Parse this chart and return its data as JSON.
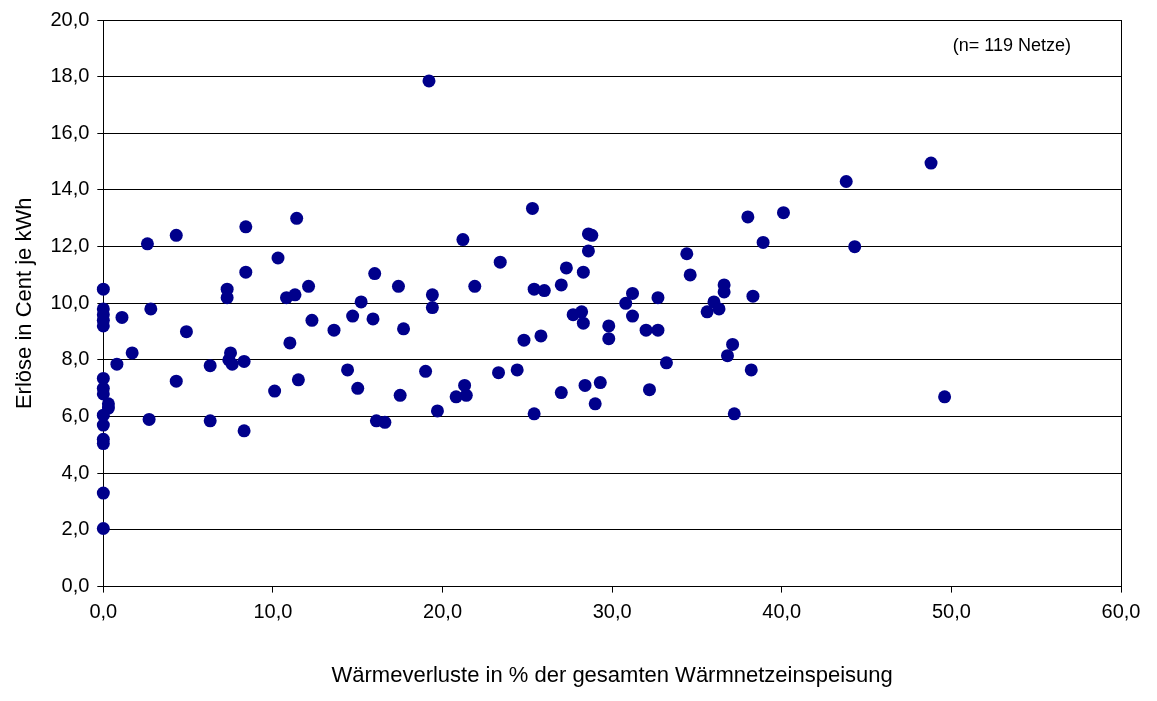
{
  "chart_data": {
    "type": "scatter",
    "xlabel": "Wärmeverluste in % der gesamten Wärmnetzeinspeisung",
    "ylabel": "Erlöse in Cent je kWh",
    "annotations": [
      "(n= 119 Netze)"
    ],
    "xlim": [
      0,
      60
    ],
    "ylim": [
      0,
      20
    ],
    "xticks": [
      {
        "value": 0,
        "label": "0,0"
      },
      {
        "value": 10,
        "label": "10,0"
      },
      {
        "value": 20,
        "label": "20,0"
      },
      {
        "value": 30,
        "label": "30,0"
      },
      {
        "value": 40,
        "label": "40,0"
      },
      {
        "value": 50,
        "label": "50,0"
      },
      {
        "value": 60,
        "label": "60,0"
      }
    ],
    "yticks": [
      {
        "value": 0,
        "label": "0,0"
      },
      {
        "value": 2,
        "label": "2,0"
      },
      {
        "value": 4,
        "label": "4,0"
      },
      {
        "value": 6,
        "label": "6,0"
      },
      {
        "value": 8,
        "label": "8,0"
      },
      {
        "value": 10,
        "label": "10,0"
      },
      {
        "value": 12,
        "label": "12,0"
      },
      {
        "value": 14,
        "label": "14,0"
      },
      {
        "value": 16,
        "label": "16,0"
      },
      {
        "value": 18,
        "label": "18,0"
      },
      {
        "value": 20,
        "label": "20,0"
      }
    ],
    "grid": "y",
    "legend": false,
    "marker": "circle",
    "series": [
      {
        "color": "#00008b",
        "x": [
          0,
          0,
          0,
          0,
          0,
          0,
          0,
          0,
          0,
          0,
          0,
          0,
          0,
          0,
          0.3,
          0.3,
          0.8,
          1.1,
          1.7,
          2.6,
          2.7,
          2.8,
          4.3,
          4.3,
          4.9,
          6.3,
          6.3,
          7.3,
          7.3,
          7.4,
          7.5,
          7.6,
          8.3,
          8.4,
          8.4,
          8.3,
          10.1,
          10.3,
          10.8,
          11.0,
          11.3,
          11.4,
          11.5,
          12.1,
          12.3,
          13.6,
          14.4,
          14.7,
          15.0,
          15.2,
          15.9,
          16.0,
          16.1,
          16.6,
          17.4,
          17.5,
          17.7,
          19.0,
          19.2,
          19.4,
          19.4,
          19.7,
          20.8,
          21.2,
          21.3,
          21.4,
          21.9,
          23.3,
          23.4,
          24.4,
          24.8,
          25.3,
          25.4,
          25.4,
          25.8,
          26.0,
          27.0,
          27.0,
          27.3,
          27.7,
          28.2,
          28.3,
          28.3,
          28.4,
          28.6,
          28.6,
          28.8,
          29.0,
          29.3,
          29.8,
          29.8,
          30.8,
          31.2,
          31.2,
          32.0,
          32.2,
          32.7,
          32.7,
          33.2,
          34.4,
          34.6,
          35.6,
          36.0,
          36.3,
          36.6,
          36.6,
          36.8,
          37.1,
          37.2,
          38.0,
          38.3,
          38.2,
          38.9,
          40.1,
          43.8,
          44.3,
          48.8,
          49.6
        ],
        "values": [
          10.5,
          9.8,
          9.6,
          9.4,
          9.2,
          7.35,
          7.0,
          6.8,
          6.05,
          5.7,
          5.2,
          5.05,
          3.3,
          2.05,
          6.3,
          6.45,
          7.85,
          9.5,
          8.25,
          12.1,
          5.9,
          9.8,
          12.4,
          7.25,
          9.0,
          7.8,
          5.85,
          10.5,
          10.2,
          8.0,
          8.25,
          7.85,
          7.95,
          12.7,
          11.1,
          5.5,
          6.9,
          11.6,
          10.2,
          8.6,
          10.3,
          13.0,
          7.3,
          10.6,
          9.4,
          9.05,
          7.65,
          9.55,
          7.0,
          10.05,
          9.45,
          11.05,
          5.85,
          5.8,
          10.6,
          6.75,
          9.1,
          7.6,
          17.85,
          10.3,
          9.85,
          6.2,
          6.7,
          12.25,
          7.1,
          6.75,
          10.6,
          7.55,
          11.45,
          7.65,
          8.7,
          13.35,
          10.5,
          6.1,
          8.85,
          10.45,
          10.65,
          6.85,
          11.25,
          9.6,
          9.7,
          11.1,
          9.3,
          7.1,
          12.45,
          11.85,
          12.4,
          6.45,
          7.2,
          9.2,
          8.75,
          10.0,
          10.35,
          9.55,
          9.05,
          6.95,
          10.2,
          9.05,
          7.9,
          11.75,
          11.0,
          9.7,
          10.05,
          9.8,
          10.65,
          10.4,
          8.15,
          8.55,
          6.1,
          13.05,
          10.25,
          7.65,
          12.15,
          13.2,
          14.3,
          12.0,
          14.95,
          6.7
        ]
      }
    ]
  }
}
